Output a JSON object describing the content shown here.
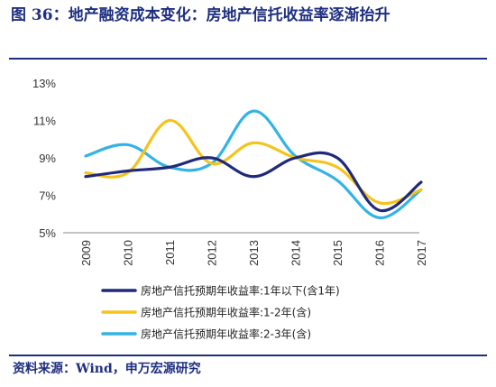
{
  "title": "图 36：地产融资成本变化：房地产信托收益率逐渐抬升",
  "source": "资料来源：Wind，申万宏源研究",
  "chart_data": {
    "type": "line",
    "title": "",
    "xlabel": "",
    "ylabel": "",
    "categories": [
      "2009",
      "2010",
      "2011",
      "2012",
      "2013",
      "2014",
      "2015",
      "2016",
      "2017"
    ],
    "ylim": [
      5,
      13
    ],
    "yticks": [
      "5%",
      "7%",
      "9%",
      "11%",
      "13%"
    ],
    "grid": false,
    "legend_position": "bottom",
    "series": [
      {
        "name": "房地产信托预期年收益率:1年以下(含1年)",
        "color": "#1f2a7a",
        "values": [
          8.0,
          8.3,
          8.5,
          9.0,
          8.0,
          9.0,
          9.0,
          6.2,
          7.7
        ]
      },
      {
        "name": "房地产信托预期年收益率:1-2年(含)",
        "color": "#f5c41c",
        "values": [
          8.2,
          8.2,
          11.0,
          8.7,
          9.8,
          9.0,
          8.5,
          6.6,
          7.3
        ]
      },
      {
        "name": "房地产信托预期年收益率:2-3年(含)",
        "color": "#33b3e5",
        "values": [
          9.1,
          9.7,
          8.5,
          8.7,
          11.5,
          9.1,
          7.8,
          5.8,
          7.3
        ]
      }
    ]
  }
}
